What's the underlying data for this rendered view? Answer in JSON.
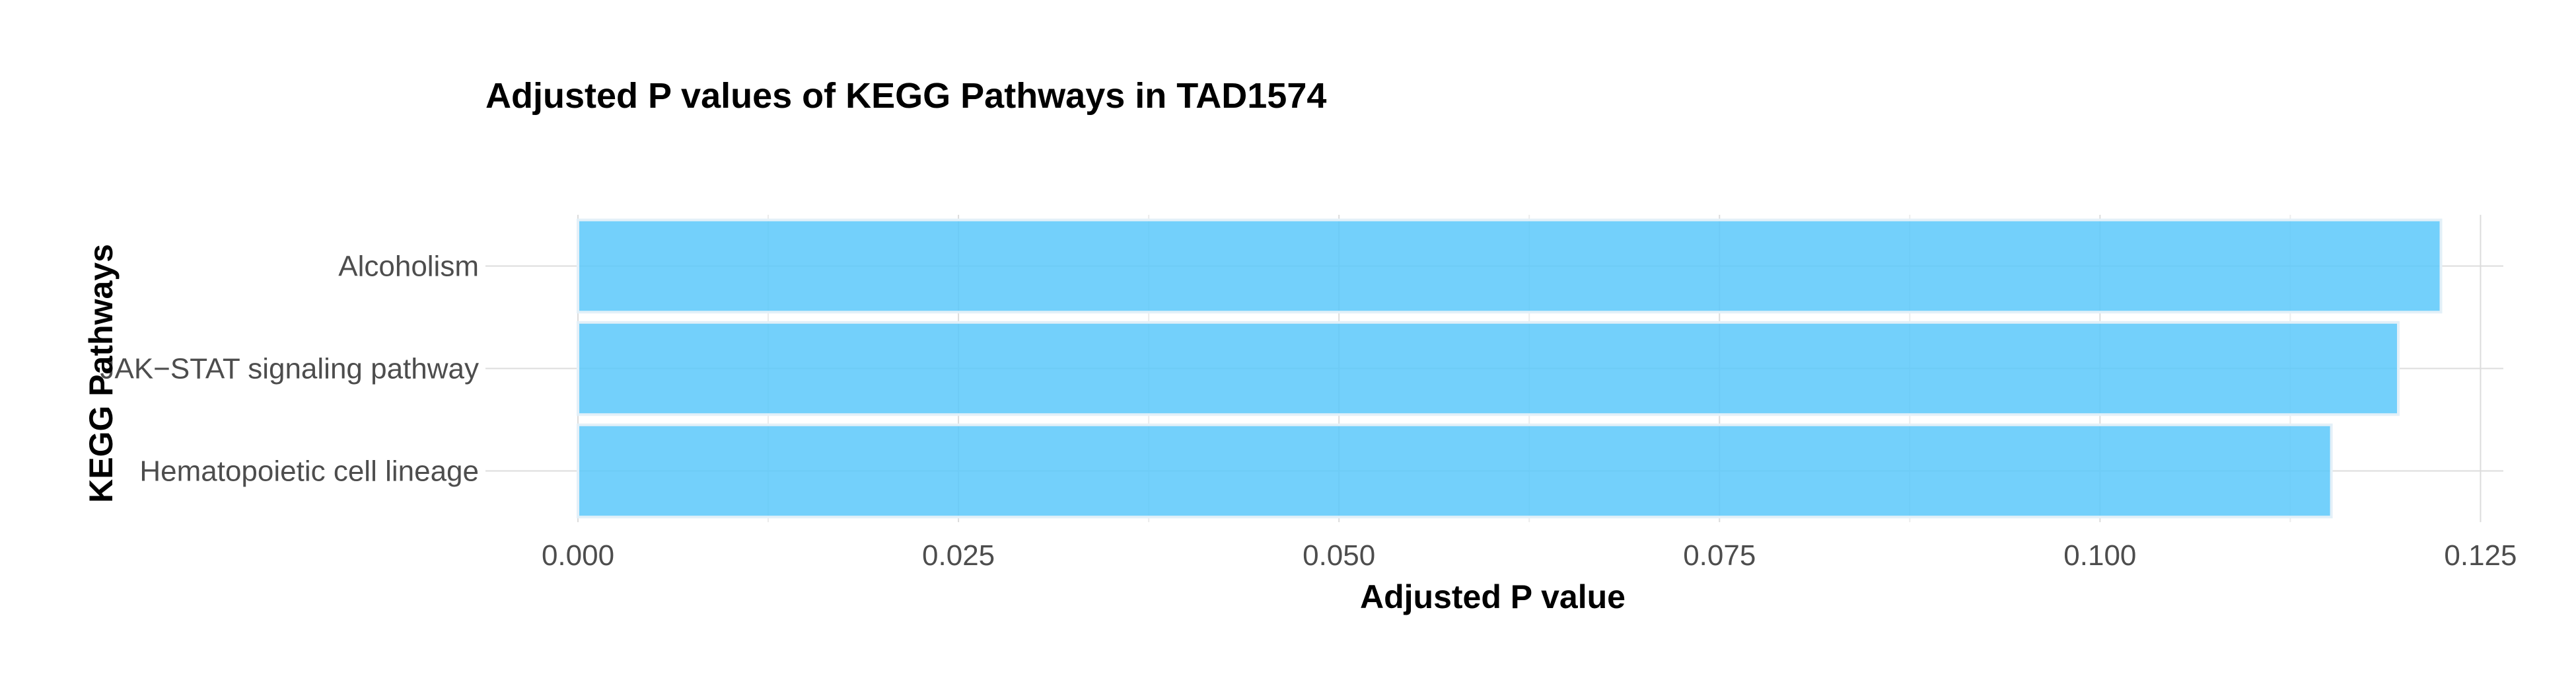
{
  "chart_data": {
    "type": "bar",
    "orientation": "horizontal",
    "title": "Adjusted P values of KEGG Pathways in TAD1574",
    "xlabel": "Adjusted P value",
    "ylabel": "KEGG Pathways",
    "categories": [
      "Alcoholism",
      "JAK−STAT signaling pathway",
      "Hematopoietic cell lineage"
    ],
    "values": [
      0.1224,
      0.1196,
      0.1152
    ],
    "xlim": [
      0,
      0.1265
    ],
    "xticks": [
      0.0,
      0.025,
      0.05,
      0.075,
      0.1,
      0.125
    ],
    "xtick_labels": [
      "0.000",
      "0.025",
      "0.050",
      "0.075",
      "0.100",
      "0.125"
    ],
    "grid": true,
    "bar_color": "#5ac8fa",
    "legend": "none"
  }
}
